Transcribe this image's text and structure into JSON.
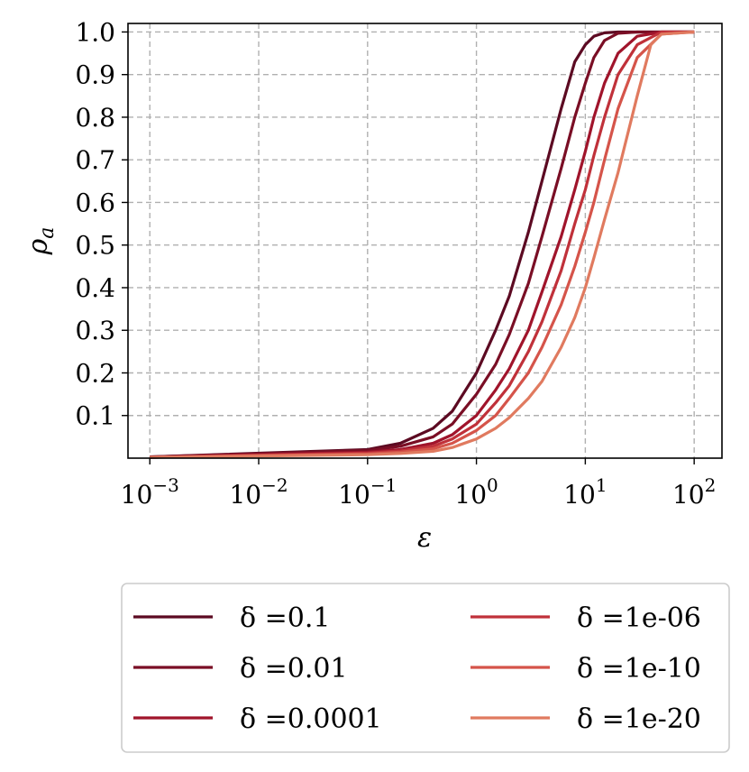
{
  "chart_data": {
    "type": "line",
    "xscale": "log",
    "xlabel": "ε",
    "ylabel": "ρa",
    "ylabel_main": "ρ",
    "ylabel_sub": "a",
    "xlim": [
      0.00063,
      180
    ],
    "ylim": [
      0.0,
      1.02
    ],
    "grid": true,
    "legend_position": "bottom-center",
    "x_ticks": [
      0.001,
      0.01,
      0.1,
      1,
      10,
      100
    ],
    "x_tick_labels": [
      {
        "base": "10",
        "exp": "−3"
      },
      {
        "base": "10",
        "exp": "−2"
      },
      {
        "base": "10",
        "exp": "−1"
      },
      {
        "base": "10",
        "exp": "0"
      },
      {
        "base": "10",
        "exp": "1"
      },
      {
        "base": "10",
        "exp": "2"
      }
    ],
    "y_ticks": [
      0.1,
      0.2,
      0.3,
      0.4,
      0.5,
      0.6,
      0.7,
      0.8,
      0.9,
      1.0
    ],
    "y_tick_labels": [
      "0.1",
      "0.2",
      "0.3",
      "0.4",
      "0.5",
      "0.6",
      "0.7",
      "0.8",
      "0.9",
      "1.0"
    ],
    "series": [
      {
        "name": "δ =0.1",
        "color": "#5c0a22",
        "x": [
          0.001,
          0.1,
          0.2,
          0.4,
          0.6,
          1,
          1.5,
          2,
          3,
          4,
          6,
          8,
          10,
          12,
          15,
          20,
          30,
          50,
          100
        ],
        "y": [
          0.003,
          0.02,
          0.035,
          0.07,
          0.11,
          0.2,
          0.3,
          0.38,
          0.53,
          0.65,
          0.82,
          0.93,
          0.97,
          0.99,
          0.998,
          1.0,
          1.0,
          1.0,
          1.0
        ]
      },
      {
        "name": "δ =0.01",
        "color": "#7a0e25",
        "x": [
          0.001,
          0.1,
          0.2,
          0.4,
          0.6,
          1,
          1.5,
          2,
          3,
          4,
          6,
          8,
          10,
          12,
          15,
          20,
          30,
          50,
          100
        ],
        "y": [
          0.003,
          0.018,
          0.028,
          0.05,
          0.08,
          0.15,
          0.22,
          0.29,
          0.41,
          0.52,
          0.68,
          0.8,
          0.88,
          0.94,
          0.98,
          0.997,
          1.0,
          1.0,
          1.0
        ]
      },
      {
        "name": "δ =0.0001",
        "color": "#a0142b",
        "x": [
          0.001,
          0.1,
          0.2,
          0.4,
          0.6,
          1,
          1.5,
          2,
          3,
          4,
          6,
          8,
          10,
          12,
          15,
          20,
          30,
          50,
          100
        ],
        "y": [
          0.002,
          0.014,
          0.02,
          0.035,
          0.055,
          0.1,
          0.16,
          0.21,
          0.3,
          0.39,
          0.52,
          0.63,
          0.72,
          0.8,
          0.88,
          0.95,
          0.99,
          1.0,
          1.0
        ]
      },
      {
        "name": "δ =1e-06",
        "color": "#c0313a",
        "x": [
          0.001,
          0.1,
          0.2,
          0.4,
          0.6,
          1,
          1.5,
          2,
          3,
          4,
          6,
          8,
          10,
          12,
          15,
          20,
          30,
          50,
          100
        ],
        "y": [
          0.002,
          0.012,
          0.017,
          0.028,
          0.045,
          0.08,
          0.13,
          0.17,
          0.25,
          0.32,
          0.44,
          0.55,
          0.63,
          0.71,
          0.8,
          0.9,
          0.97,
          1.0,
          1.0
        ]
      },
      {
        "name": "δ =1e-10",
        "color": "#d5544a",
        "x": [
          0.001,
          0.1,
          0.2,
          0.4,
          0.6,
          1,
          1.5,
          2,
          3,
          4,
          6,
          8,
          10,
          12,
          15,
          20,
          30,
          50,
          100
        ],
        "y": [
          0.002,
          0.01,
          0.014,
          0.022,
          0.035,
          0.065,
          0.1,
          0.14,
          0.2,
          0.26,
          0.36,
          0.45,
          0.53,
          0.6,
          0.7,
          0.82,
          0.94,
          0.995,
          1.0
        ]
      },
      {
        "name": "δ =1e-20",
        "color": "#e07a5f",
        "x": [
          0.001,
          0.1,
          0.2,
          0.4,
          0.6,
          1,
          1.5,
          2,
          3,
          4,
          6,
          8,
          10,
          12,
          15,
          20,
          30,
          40,
          50,
          100
        ],
        "y": [
          0.002,
          0.008,
          0.011,
          0.016,
          0.025,
          0.045,
          0.07,
          0.095,
          0.14,
          0.18,
          0.26,
          0.33,
          0.4,
          0.47,
          0.56,
          0.67,
          0.85,
          0.97,
          0.995,
          1.0
        ]
      }
    ]
  }
}
